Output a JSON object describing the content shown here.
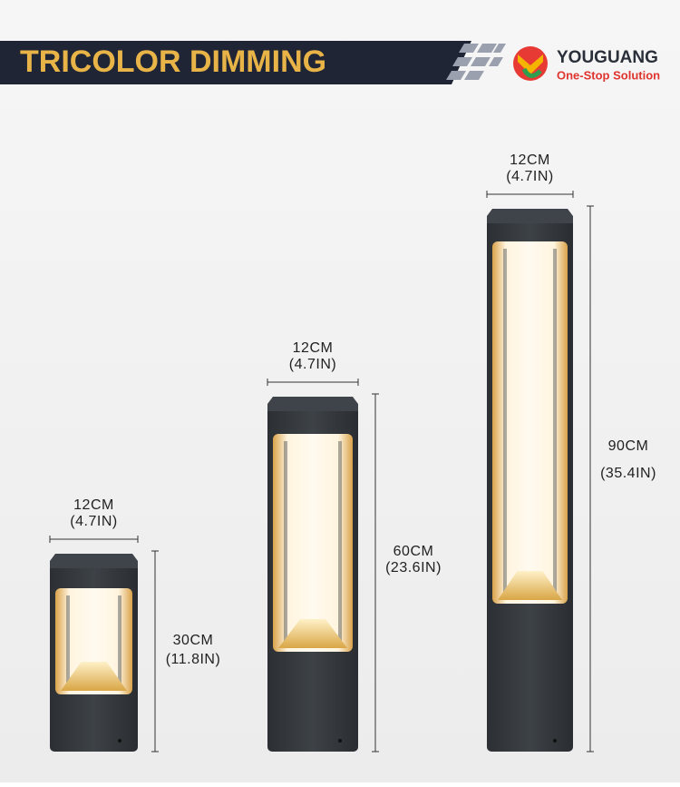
{
  "header": {
    "title": "TRICOLOR DIMMING",
    "brand": "YOUGUANG",
    "tagline": "One-Stop Solution"
  },
  "products": [
    {
      "width_cm": "12CM",
      "width_in": "(4.7IN)",
      "height_cm": "30CM",
      "height_in": "(11.8IN)"
    },
    {
      "width_cm": "12CM",
      "width_in": "(4.7IN)",
      "height_cm": "60CM",
      "height_in": "(23.6IN)"
    },
    {
      "width_cm": "12CM",
      "width_in": "(4.7IN)",
      "height_cm": "90CM",
      "height_in": "(35.4IN)"
    }
  ]
}
